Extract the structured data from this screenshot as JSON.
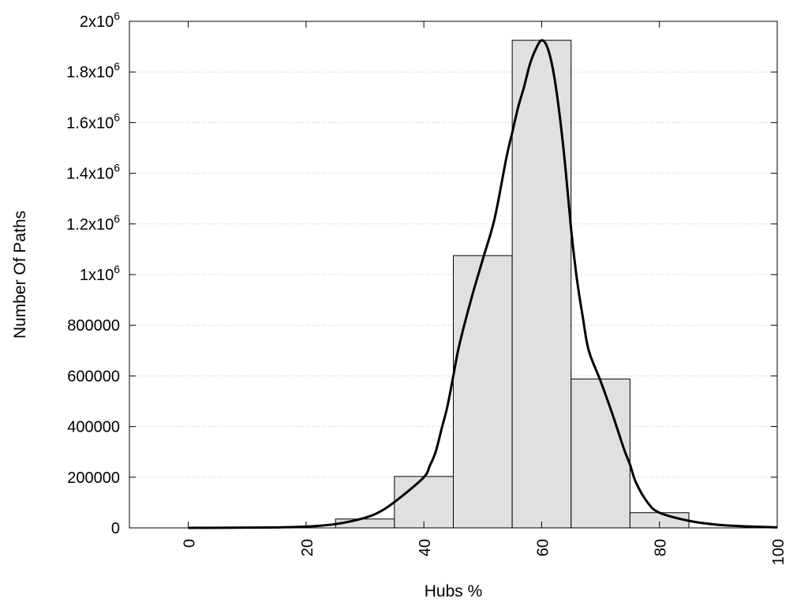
{
  "chart_data": {
    "type": "bar",
    "xlabel": "Hubs %",
    "ylabel": "Number Of Paths",
    "xlim": [
      -10,
      100
    ],
    "ylim": [
      0,
      2000000
    ],
    "grid": "horizontal dotted",
    "legend": "none",
    "x_ticks": [
      {
        "value": 0,
        "label": "0"
      },
      {
        "value": 20,
        "label": "20"
      },
      {
        "value": 40,
        "label": "40"
      },
      {
        "value": 60,
        "label": "60"
      },
      {
        "value": 80,
        "label": "80"
      },
      {
        "value": 100,
        "label": "100"
      }
    ],
    "y_ticks": [
      {
        "value": 0,
        "label": "0"
      },
      {
        "value": 200000,
        "label": "200000"
      },
      {
        "value": 400000,
        "label": "400000"
      },
      {
        "value": 600000,
        "label": "600000"
      },
      {
        "value": 800000,
        "label": "800000"
      },
      {
        "value": 1000000,
        "base": "1x10",
        "exp": "6"
      },
      {
        "value": 1200000,
        "base": "1.2x10",
        "exp": "6"
      },
      {
        "value": 1400000,
        "base": "1.4x10",
        "exp": "6"
      },
      {
        "value": 1600000,
        "base": "1.6x10",
        "exp": "6"
      },
      {
        "value": 1800000,
        "base": "1.8x10",
        "exp": "6"
      },
      {
        "value": 2000000,
        "base": "2x10",
        "exp": "6"
      }
    ],
    "histogram": {
      "bins": [
        {
          "x0": 25,
          "x1": 35,
          "value": 35000
        },
        {
          "x0": 35,
          "x1": 45,
          "value": 203000
        },
        {
          "x0": 45,
          "x1": 55,
          "value": 1075000
        },
        {
          "x0": 55,
          "x1": 65,
          "value": 1925000
        },
        {
          "x0": 65,
          "x1": 75,
          "value": 588000
        },
        {
          "x0": 75,
          "x1": 85,
          "value": 60000
        }
      ],
      "color": "#e0e0e0"
    },
    "curve": {
      "type": "line",
      "color": "#000000",
      "points": [
        [
          0,
          0
        ],
        [
          10,
          1000
        ],
        [
          15,
          2000
        ],
        [
          20,
          5000
        ],
        [
          25,
          15000
        ],
        [
          30,
          40000
        ],
        [
          33,
          70000
        ],
        [
          36,
          120000
        ],
        [
          40,
          200000
        ],
        [
          41,
          245000
        ],
        [
          42,
          300000
        ],
        [
          43,
          390000
        ],
        [
          44,
          480000
        ],
        [
          45,
          600000
        ],
        [
          46,
          720000
        ],
        [
          48,
          900000
        ],
        [
          50,
          1060000
        ],
        [
          52,
          1220000
        ],
        [
          54,
          1460000
        ],
        [
          55,
          1560000
        ],
        [
          56,
          1660000
        ],
        [
          57,
          1740000
        ],
        [
          58,
          1830000
        ],
        [
          59,
          1890000
        ],
        [
          60,
          1925000
        ],
        [
          61,
          1895000
        ],
        [
          62,
          1800000
        ],
        [
          63,
          1640000
        ],
        [
          64,
          1430000
        ],
        [
          65,
          1180000
        ],
        [
          66,
          980000
        ],
        [
          67,
          830000
        ],
        [
          68,
          700000
        ],
        [
          70,
          580000
        ],
        [
          72,
          450000
        ],
        [
          74,
          310000
        ],
        [
          75,
          250000
        ],
        [
          76,
          180000
        ],
        [
          78,
          100000
        ],
        [
          80,
          60000
        ],
        [
          85,
          28000
        ],
        [
          90,
          12000
        ],
        [
          95,
          6000
        ],
        [
          100,
          2000
        ]
      ]
    }
  }
}
